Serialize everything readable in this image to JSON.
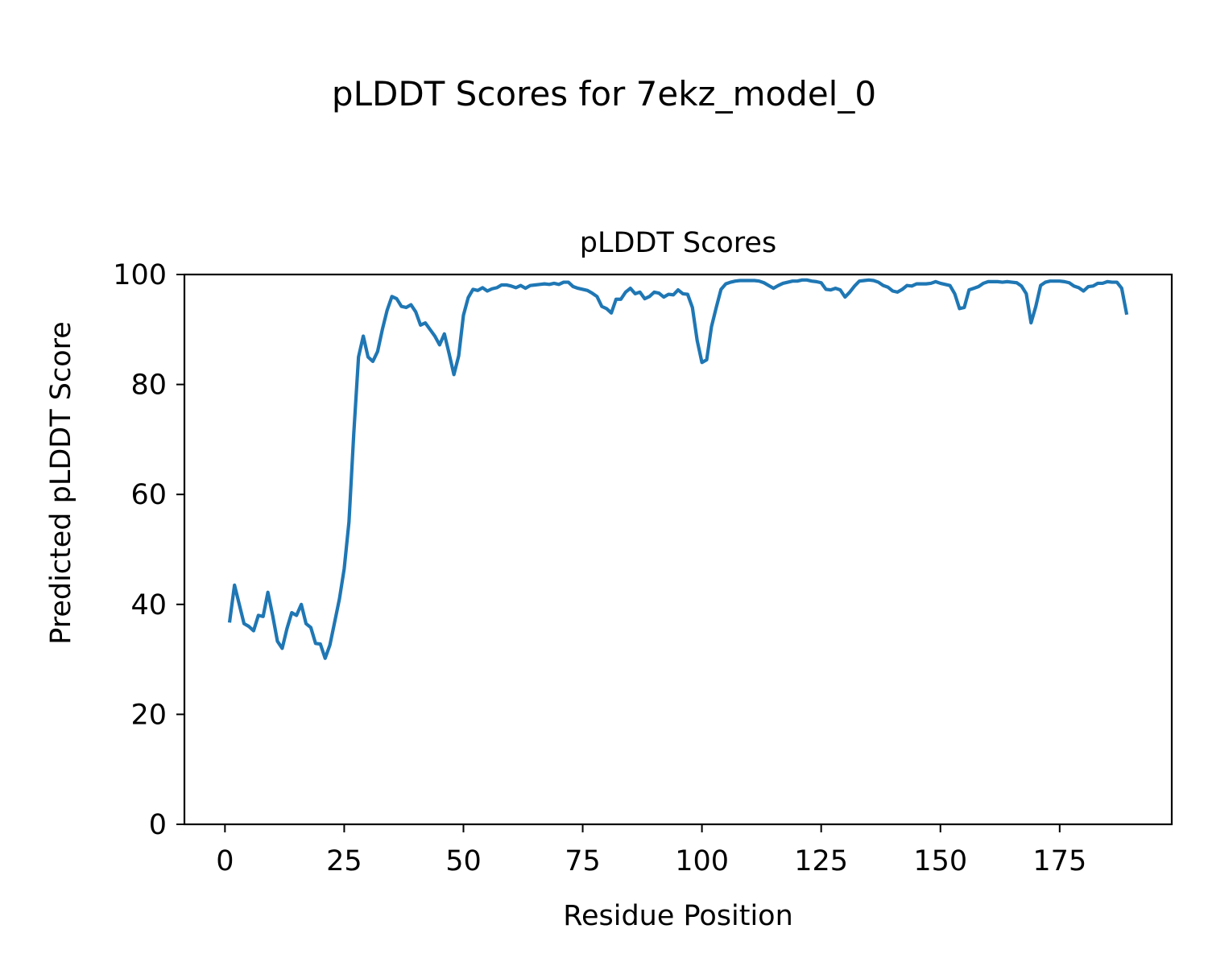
{
  "figure_title": "pLDDT Scores for 7ekz_model_0",
  "chart_data": {
    "type": "line",
    "title": "pLDDT Scores",
    "xlabel": "Residue Position",
    "ylabel": "Predicted pLDDT Score",
    "xlim": [
      -8.5,
      198.5
    ],
    "ylim": [
      0,
      100
    ],
    "xticks": [
      0,
      25,
      50,
      75,
      100,
      125,
      150,
      175
    ],
    "yticks": [
      0,
      20,
      40,
      60,
      80,
      100
    ],
    "grid": false,
    "line_color": "#1f77b4",
    "series": [
      {
        "x": [
          1,
          2,
          3,
          4,
          5,
          6,
          7,
          8,
          9,
          10,
          11,
          12,
          13,
          14,
          15,
          16,
          17,
          18,
          19,
          20,
          21,
          22,
          23,
          24,
          25,
          26,
          27,
          28,
          29,
          30,
          31,
          32,
          33,
          34,
          35,
          36,
          37,
          38,
          39,
          40,
          41,
          42,
          43,
          44,
          45,
          46,
          47,
          48,
          49,
          50,
          51,
          52,
          53,
          54,
          55,
          56,
          57,
          58,
          59,
          60,
          61,
          62,
          63,
          64,
          65,
          66,
          67,
          68,
          69,
          70,
          71,
          72,
          73,
          74,
          75,
          76,
          77,
          78,
          79,
          80,
          81,
          82,
          83,
          84,
          85,
          86,
          87,
          88,
          89,
          90,
          91,
          92,
          93,
          94,
          95,
          96,
          97,
          98,
          99,
          100,
          101,
          102,
          103,
          104,
          105,
          106,
          107,
          108,
          109,
          110,
          111,
          112,
          113,
          114,
          115,
          116,
          117,
          118,
          119,
          120,
          121,
          122,
          123,
          124,
          125,
          126,
          127,
          128,
          129,
          130,
          131,
          132,
          133,
          134,
          135,
          136,
          137,
          138,
          139,
          140,
          141,
          142,
          143,
          144,
          145,
          146,
          147,
          148,
          149,
          150,
          151,
          152,
          153,
          154,
          155,
          156,
          157,
          158,
          159,
          160,
          161,
          162,
          163,
          164,
          165,
          166,
          167,
          168,
          169,
          170,
          171,
          172,
          173,
          174,
          175,
          176,
          177,
          178,
          179,
          180,
          181,
          182,
          183,
          184,
          185,
          186,
          187,
          188,
          189
        ],
        "values": [
          37.0,
          43.5,
          40.0,
          36.5,
          36.0,
          35.2,
          38.0,
          37.8,
          42.2,
          38.0,
          33.3,
          32.0,
          35.6,
          38.5,
          38.0,
          40.0,
          36.5,
          35.8,
          32.9,
          32.8,
          30.2,
          32.6,
          36.8,
          41.0,
          46.5,
          55.0,
          71.0,
          85.0,
          88.8,
          85.0,
          84.2,
          86.0,
          90.0,
          93.5,
          96.0,
          95.6,
          94.2,
          94.0,
          94.5,
          93.2,
          90.8,
          91.2,
          90.0,
          88.8,
          87.2,
          89.2,
          85.6,
          81.8,
          85.2,
          92.6,
          95.8,
          97.3,
          97.1,
          97.6,
          97.0,
          97.4,
          97.6,
          98.1,
          98.1,
          97.9,
          97.6,
          98.0,
          97.5,
          98.0,
          98.1,
          98.2,
          98.3,
          98.2,
          98.4,
          98.2,
          98.6,
          98.6,
          97.8,
          97.5,
          97.3,
          97.1,
          96.6,
          96.0,
          94.2,
          93.8,
          93.0,
          95.5,
          95.5,
          96.8,
          97.5,
          96.5,
          96.8,
          95.6,
          96.0,
          96.8,
          96.6,
          95.9,
          96.4,
          96.3,
          97.2,
          96.5,
          96.4,
          94.0,
          88.0,
          84.0,
          84.5,
          90.5,
          94.0,
          97.3,
          98.3,
          98.6,
          98.8,
          98.9,
          98.9,
          98.9,
          98.9,
          98.8,
          98.5,
          98.0,
          97.5,
          98.0,
          98.4,
          98.6,
          98.8,
          98.8,
          99.0,
          99.0,
          98.8,
          98.7,
          98.5,
          97.3,
          97.2,
          97.5,
          97.2,
          95.9,
          96.8,
          97.9,
          98.8,
          98.9,
          99.0,
          98.9,
          98.6,
          98.0,
          97.7,
          97.0,
          96.8,
          97.3,
          98.0,
          97.9,
          98.3,
          98.3,
          98.3,
          98.4,
          98.7,
          98.4,
          98.2,
          98.0,
          96.5,
          93.8,
          94.0,
          97.2,
          97.5,
          97.8,
          98.4,
          98.7,
          98.7,
          98.7,
          98.6,
          98.7,
          98.6,
          98.5,
          97.9,
          96.5,
          91.2,
          94.2,
          98.0,
          98.6,
          98.8,
          98.8,
          98.8,
          98.7,
          98.5,
          97.9,
          97.6,
          97.0,
          97.8,
          97.9,
          98.4,
          98.4,
          98.7,
          98.6,
          98.6,
          97.5,
          93.0
        ]
      }
    ]
  }
}
